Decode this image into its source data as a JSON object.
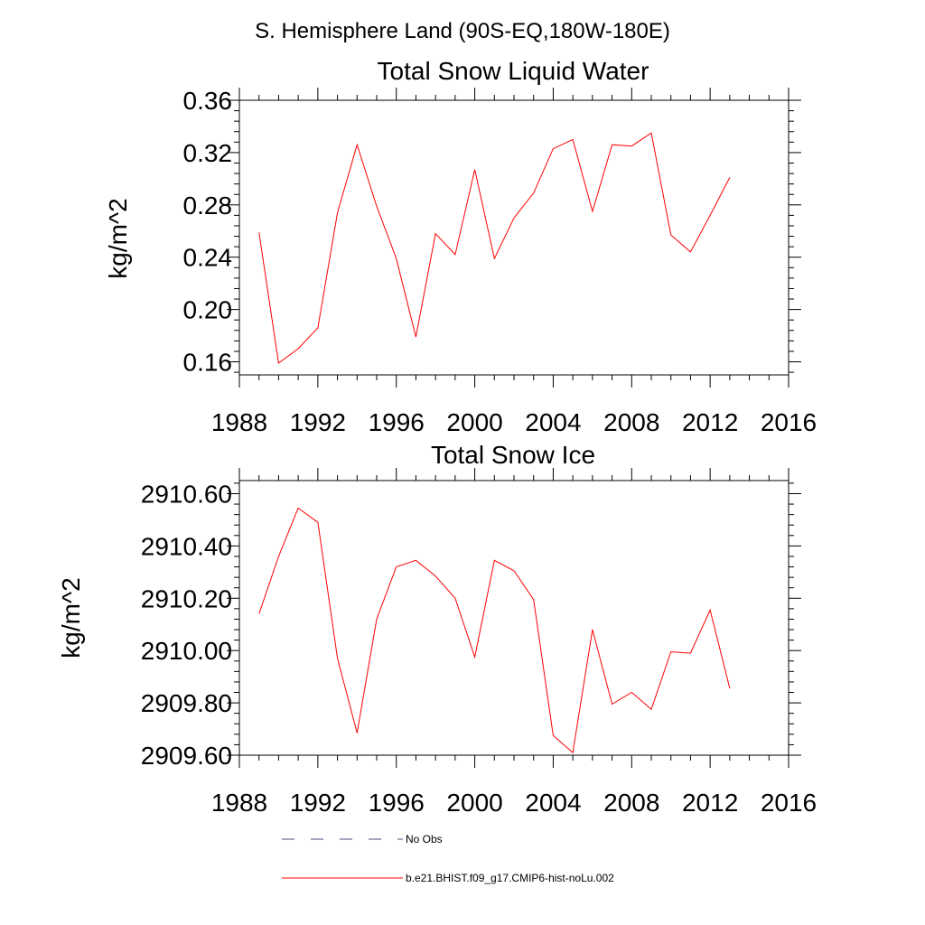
{
  "figure": {
    "suptitle": "S. Hemisphere Land (90S-EQ,180W-180E)",
    "colors": {
      "series": "#ff0000",
      "obs": "#4a4a7a",
      "axis": "#000000"
    },
    "legend": {
      "obs_label": "No Obs",
      "model_label": "b.e21.BHIST.f09_g17.CMIP6-hist-noLu.002"
    }
  },
  "chart_data": [
    {
      "type": "line",
      "title": "Total Snow Liquid Water",
      "ylabel": "kg/m^2",
      "xlabel": "",
      "xlim": [
        1988,
        2016
      ],
      "ylim": [
        0.15,
        0.36
      ],
      "xticks": [
        1988,
        1992,
        1996,
        2000,
        2004,
        2008,
        2012,
        2016
      ],
      "yticks": [
        0.16,
        0.2,
        0.24,
        0.28,
        0.32,
        0.36
      ],
      "yformat": 2,
      "grid": false,
      "series": [
        {
          "name": "b.e21.BHIST.f09_g17.CMIP6-hist-noLu.002",
          "x": [
            1989,
            1990,
            1991,
            1992,
            1993,
            1994,
            1995,
            1996,
            1997,
            1998,
            1999,
            2000,
            2001,
            2002,
            2003,
            2004,
            2005,
            2006,
            2007,
            2008,
            2009,
            2010,
            2011,
            2012,
            2013
          ],
          "values": [
            0.259,
            0.159,
            0.17,
            0.186,
            0.274,
            0.326,
            0.279,
            0.239,
            0.179,
            0.258,
            0.242,
            0.307,
            0.239,
            0.27,
            0.289,
            0.323,
            0.33,
            0.275,
            0.326,
            0.325,
            0.335,
            0.257,
            0.244,
            0.272,
            0.301
          ]
        }
      ]
    },
    {
      "type": "line",
      "title": "Total Snow Ice",
      "ylabel": "kg/m^2",
      "xlabel": "",
      "xlim": [
        1988,
        2016
      ],
      "ylim": [
        2909.6,
        2910.65
      ],
      "xticks": [
        1988,
        1992,
        1996,
        2000,
        2004,
        2008,
        2012,
        2016
      ],
      "yticks": [
        2909.6,
        2909.8,
        2910.0,
        2910.2,
        2910.4,
        2910.6
      ],
      "yformat": 2,
      "grid": false,
      "series": [
        {
          "name": "b.e21.BHIST.f09_g17.CMIP6-hist-noLu.002",
          "x": [
            1989,
            1990,
            1991,
            1992,
            1993,
            1994,
            1995,
            1996,
            1997,
            1998,
            1999,
            2000,
            2001,
            2002,
            2003,
            2004,
            2005,
            2006,
            2007,
            2008,
            2009,
            2010,
            2011,
            2012,
            2013
          ],
          "values": [
            2910.14,
            2910.36,
            2910.545,
            2910.49,
            2909.97,
            2909.685,
            2910.12,
            2910.32,
            2910.345,
            2910.285,
            2910.2,
            2909.975,
            2910.345,
            2910.305,
            2910.195,
            2909.675,
            2909.61,
            2910.08,
            2909.795,
            2909.84,
            2909.775,
            2909.995,
            2909.99,
            2910.155,
            2909.855
          ]
        }
      ]
    }
  ]
}
